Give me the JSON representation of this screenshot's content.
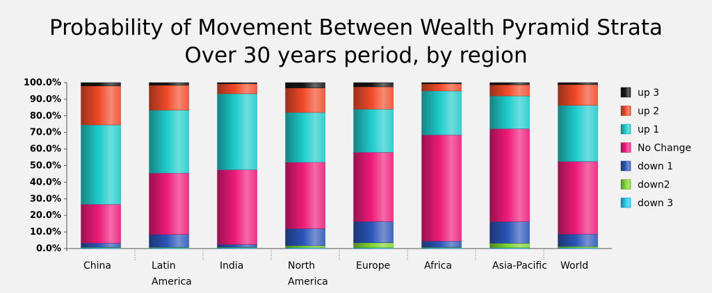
{
  "chart_data": {
    "type": "bar",
    "stacked": true,
    "title": "Probability of Movement Between Wealth Pyramid Strata",
    "subtitle": "Over 30 years period, by region",
    "xlabel": "",
    "ylabel": "",
    "ylim": [
      0,
      100
    ],
    "yticks": [
      "0.0%",
      "10.0%",
      "20.0%",
      "30.0%",
      "40.0%",
      "50.0%",
      "60.0%",
      "70.0%",
      "80.0%",
      "90.0%",
      "100.0%"
    ],
    "categories": [
      [
        "China"
      ],
      [
        "Latin",
        "America"
      ],
      [
        "India"
      ],
      [
        "North",
        "America"
      ],
      [
        "Europe"
      ],
      [
        "Africa"
      ],
      [
        "Asia-Pacific"
      ],
      [
        "World"
      ]
    ],
    "legend_position": "right",
    "grid": false,
    "series": [
      {
        "name": "down 3",
        "color": "#1ec8f0",
        "values": [
          0.5,
          0.5,
          0.5,
          0.5,
          0.5,
          0.5,
          0.5,
          0.5
        ]
      },
      {
        "name": "down2",
        "color": "#7ed630",
        "values": [
          0.3,
          0.3,
          0.3,
          1.2,
          3.0,
          0.3,
          2.7,
          0.8
        ]
      },
      {
        "name": "down 1",
        "color": "#2a55b8",
        "values": [
          2.5,
          7.7,
          1.7,
          10.3,
          12.8,
          3.7,
          13.0,
          7.4
        ]
      },
      {
        "name": "No Change",
        "color": "#ee1a7a",
        "values": [
          23.4,
          37.0,
          45.0,
          40.0,
          41.7,
          64.0,
          56.0,
          43.8
        ]
      },
      {
        "name": "up 1",
        "color": "#1ecbcb",
        "values": [
          47.8,
          37.9,
          45.8,
          30.0,
          26.0,
          26.5,
          19.8,
          33.8
        ]
      },
      {
        "name": "up 2",
        "color": "#f04a28",
        "values": [
          23.5,
          15.0,
          6.0,
          14.8,
          13.5,
          4.3,
          6.7,
          12.5
        ]
      },
      {
        "name": "up 3",
        "color": "#151515",
        "values": [
          2.0,
          1.6,
          0.7,
          3.2,
          2.5,
          0.7,
          1.3,
          1.2
        ]
      }
    ]
  }
}
